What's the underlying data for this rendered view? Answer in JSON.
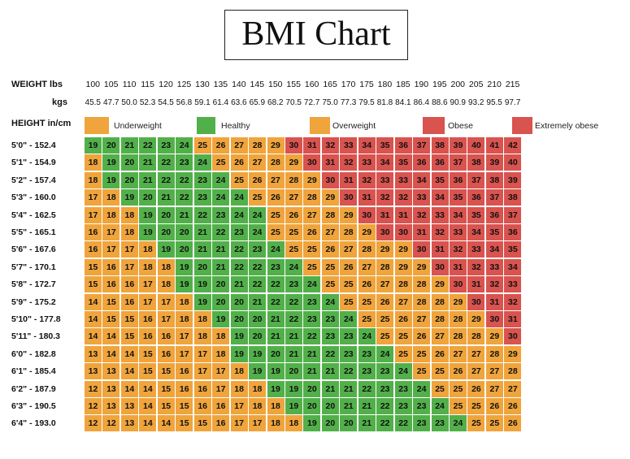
{
  "title": "BMI Chart",
  "labels": {
    "weight_lbs": "WEIGHT lbs",
    "kgs": "kgs",
    "height": "HEIGHT in/cm"
  },
  "colors": {
    "Underweight": "#f0a43c",
    "Healthy": "#52b04a",
    "Overweight": "#f0a43c",
    "Obese": "#d9534f",
    "Extremely obese": "#d9534f"
  },
  "legend": [
    {
      "name": "Underweight",
      "color": "#f0a43c"
    },
    {
      "name": "Healthy",
      "color": "#52b04a"
    },
    {
      "name": "Overweight",
      "color": "#f0a43c"
    },
    {
      "name": "Obese",
      "color": "#d9534f"
    },
    {
      "name": "Extremely obese",
      "color": "#d9534f"
    }
  ],
  "chart_data": {
    "type": "heatmap",
    "title": "BMI Chart",
    "weights_lbs": [
      "100",
      "105",
      "110",
      "115",
      "120",
      "125",
      "130",
      "135",
      "140",
      "145",
      "150",
      "155",
      "160",
      "165",
      "170",
      "175",
      "180",
      "185",
      "190",
      "195",
      "200",
      "205",
      "210",
      "215"
    ],
    "weights_kgs": [
      "45.5",
      "47.7",
      "50.0",
      "52.3",
      "54.5",
      "56.8",
      "59.1",
      "61.4",
      "63.6",
      "65.9",
      "68.2",
      "70.5",
      "72.7",
      "75.0",
      "77.3",
      "79.5",
      "81.8",
      "84.1",
      "86.4",
      "88.6",
      "90.9",
      "93.2",
      "95.5",
      "97.7"
    ],
    "heights": [
      "5'0\" - 152.4",
      "5'1\" - 154.9",
      "5'2\" - 157.4",
      "5'3\" - 160.0",
      "5'4\" - 162.5",
      "5'5\" - 165.1",
      "5'6\" - 167.6",
      "5'7\" - 170.1",
      "5'8\" - 172.7",
      "5'9\" - 175.2",
      "5'10\" - 177.8",
      "5'11\" - 180.3",
      "6'0\" - 182.8",
      "6'1\" - 185.4",
      "6'2\" - 187.9",
      "6'3\" - 190.5",
      "6'4\" - 193.0"
    ],
    "bmi": [
      [
        19,
        20,
        21,
        22,
        23,
        24,
        25,
        26,
        27,
        28,
        29,
        30,
        31,
        32,
        33,
        34,
        35,
        36,
        37,
        38,
        39,
        40,
        41,
        42
      ],
      [
        18,
        19,
        20,
        21,
        22,
        23,
        24,
        25,
        26,
        27,
        28,
        29,
        30,
        31,
        32,
        33,
        34,
        35,
        36,
        36,
        37,
        38,
        39,
        40
      ],
      [
        18,
        19,
        20,
        21,
        22,
        22,
        23,
        24,
        25,
        26,
        27,
        28,
        29,
        30,
        31,
        32,
        33,
        33,
        34,
        35,
        36,
        37,
        38,
        39
      ],
      [
        17,
        18,
        19,
        20,
        21,
        22,
        23,
        24,
        24,
        25,
        26,
        27,
        28,
        29,
        30,
        31,
        32,
        32,
        33,
        34,
        35,
        36,
        37,
        38
      ],
      [
        17,
        18,
        18,
        19,
        20,
        21,
        22,
        23,
        24,
        24,
        25,
        26,
        27,
        28,
        29,
        30,
        31,
        31,
        32,
        33,
        34,
        35,
        36,
        37
      ],
      [
        16,
        17,
        18,
        19,
        20,
        20,
        21,
        22,
        23,
        24,
        25,
        25,
        26,
        27,
        28,
        29,
        30,
        30,
        31,
        32,
        33,
        34,
        35,
        36
      ],
      [
        16,
        17,
        17,
        18,
        19,
        20,
        21,
        21,
        22,
        23,
        24,
        25,
        25,
        26,
        27,
        28,
        29,
        29,
        30,
        31,
        32,
        33,
        34,
        35
      ],
      [
        15,
        16,
        17,
        18,
        18,
        19,
        20,
        21,
        22,
        22,
        23,
        24,
        25,
        25,
        26,
        27,
        28,
        29,
        29,
        30,
        31,
        32,
        33,
        34
      ],
      [
        15,
        16,
        16,
        17,
        18,
        19,
        19,
        20,
        21,
        22,
        22,
        23,
        24,
        25,
        25,
        26,
        27,
        28,
        28,
        29,
        30,
        31,
        32,
        33
      ],
      [
        14,
        15,
        16,
        17,
        17,
        18,
        19,
        20,
        20,
        21,
        22,
        22,
        23,
        24,
        25,
        25,
        26,
        27,
        28,
        28,
        29,
        30,
        31,
        32
      ],
      [
        14,
        15,
        15,
        16,
        17,
        18,
        18,
        19,
        20,
        20,
        21,
        22,
        23,
        23,
        24,
        25,
        25,
        26,
        27,
        28,
        28,
        29,
        30,
        31
      ],
      [
        14,
        14,
        15,
        16,
        16,
        17,
        18,
        18,
        19,
        20,
        21,
        21,
        22,
        23,
        23,
        24,
        25,
        25,
        26,
        27,
        28,
        28,
        29,
        30
      ],
      [
        13,
        14,
        14,
        15,
        16,
        17,
        17,
        18,
        19,
        19,
        20,
        21,
        21,
        22,
        23,
        23,
        24,
        25,
        25,
        26,
        27,
        27,
        28,
        29
      ],
      [
        13,
        13,
        14,
        15,
        15,
        16,
        17,
        17,
        18,
        19,
        19,
        20,
        21,
        21,
        22,
        23,
        23,
        24,
        25,
        25,
        26,
        27,
        27,
        28
      ],
      [
        12,
        13,
        14,
        14,
        15,
        16,
        16,
        17,
        18,
        18,
        19,
        19,
        20,
        21,
        21,
        22,
        23,
        23,
        24,
        25,
        25,
        26,
        27,
        27
      ],
      [
        12,
        13,
        13,
        14,
        15,
        15,
        16,
        16,
        17,
        18,
        18,
        19,
        20,
        20,
        21,
        21,
        22,
        23,
        23,
        24,
        25,
        25,
        26,
        26
      ],
      [
        12,
        12,
        13,
        14,
        14,
        15,
        15,
        16,
        17,
        17,
        18,
        18,
        19,
        20,
        20,
        21,
        22,
        22,
        23,
        23,
        24,
        25,
        25,
        26
      ]
    ]
  }
}
